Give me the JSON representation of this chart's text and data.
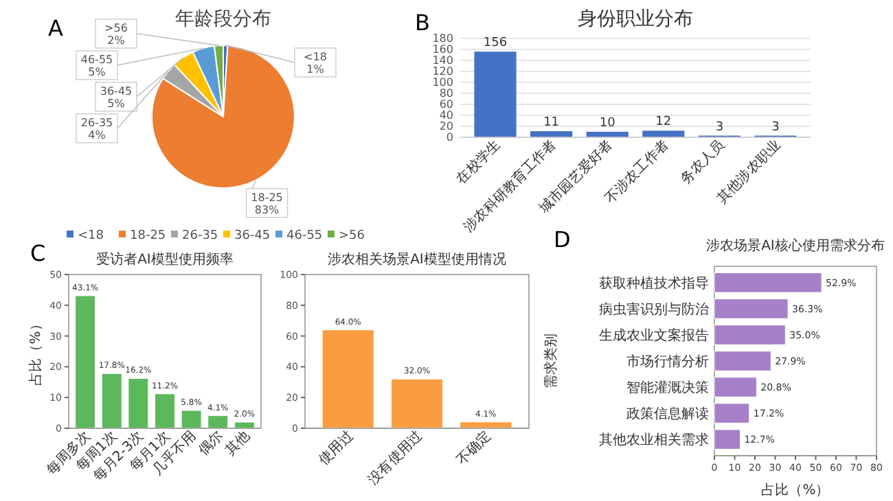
{
  "chart_data": [
    {
      "type": "pie",
      "title": "年龄段分布",
      "annotations": [
        "A"
      ],
      "categories": [
        "<18",
        "18-25",
        "26-35",
        "36-45",
        "46-55",
        ">56"
      ],
      "values": [
        1,
        83,
        4,
        5,
        5,
        2
      ],
      "value_labels": [
        "1%",
        "83%",
        "4%",
        "5%",
        "5%",
        "2%"
      ],
      "colors": [
        "#4472c4",
        "#ed7d31",
        "#a5a5a5",
        "#ffc000",
        "#5b9bd5",
        "#70ad47"
      ],
      "legend": "bottom"
    },
    {
      "type": "bar",
      "title": "身份职业分布",
      "annotations": [
        "B"
      ],
      "categories": [
        "在校学生",
        "涉农科研教育工作者",
        "城市园艺爱好者",
        "不涉农工作者",
        "务农人员",
        "其他涉农职业"
      ],
      "values": [
        156,
        11,
        10,
        12,
        3,
        3
      ],
      "color": "#4472c4",
      "ylim": [
        0,
        180
      ],
      "yticks": [
        0,
        20,
        40,
        60,
        80,
        100,
        120,
        140,
        160,
        180
      ],
      "grid": "y",
      "data_labels": true
    },
    {
      "type": "bar",
      "title": "受访者AI模型使用频率",
      "annotations": [
        "C"
      ],
      "ylabel": "占比（%）",
      "categories": [
        "每周多次",
        "每周1次",
        "每月2-3次",
        "每月1次",
        "几乎不用",
        "偶尔",
        "其他"
      ],
      "values": [
        43.1,
        17.8,
        16.2,
        11.2,
        5.8,
        4.1,
        2.0
      ],
      "value_labels": [
        "43.1%",
        "17.8%",
        "16.2%",
        "11.2%",
        "5.8%",
        "4.1%",
        "2.0%"
      ],
      "color": "#5cb85c",
      "ylim": [
        0,
        50
      ],
      "yticks": [
        0,
        10,
        20,
        30,
        40,
        50
      ]
    },
    {
      "type": "bar",
      "title": "涉农相关场景AI模型使用情况",
      "categories": [
        "使用过",
        "没有使用过",
        "不确定"
      ],
      "values": [
        64.0,
        32.0,
        4.1
      ],
      "value_labels": [
        "64.0%",
        "32.0%",
        "4.1%"
      ],
      "color": "#fa9d40",
      "ylim": [
        0,
        100
      ],
      "yticks": [
        0,
        20,
        40,
        60,
        80,
        100
      ]
    },
    {
      "type": "bar",
      "orientation": "horizontal",
      "title": "涉农场景AI核心使用需求分布",
      "annotations": [
        "D"
      ],
      "xlabel": "占比（%）",
      "ylabel": "需求类别",
      "categories": [
        "获取种植技术指导",
        "病虫害识别与防治",
        "生成农业文案报告",
        "市场行情分析",
        "智能灌溉决策",
        "政策信息解读",
        "其他农业相关需求"
      ],
      "values": [
        52.9,
        36.3,
        35.0,
        27.9,
        20.8,
        17.2,
        12.7
      ],
      "value_labels": [
        "52.9%",
        "36.3%",
        "35.0%",
        "27.9%",
        "20.8%",
        "17.2%",
        "12.7%"
      ],
      "color": "#a680c8",
      "xlim": [
        0,
        80
      ],
      "xticks": [
        0,
        10,
        20,
        30,
        40,
        50,
        60,
        70,
        80
      ]
    }
  ]
}
